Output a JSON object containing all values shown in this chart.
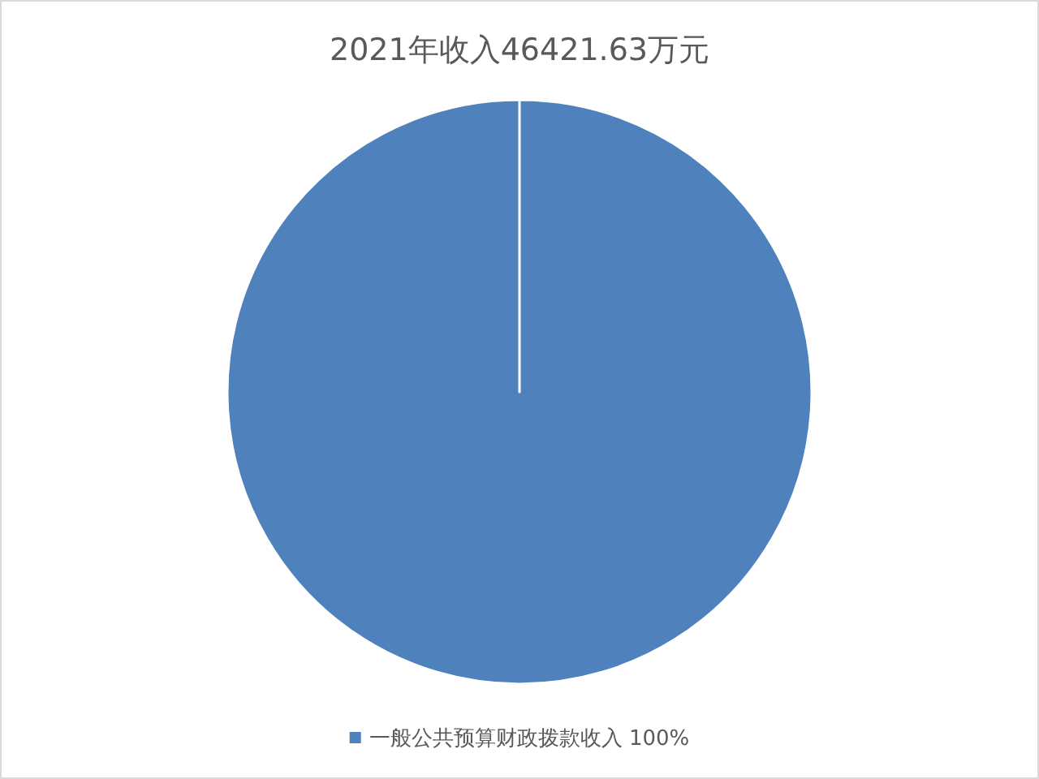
{
  "chart_data": {
    "type": "pie",
    "title": "2021年收入46421.63万元",
    "categories": [
      "一般公共预算财政拨款收入"
    ],
    "values": [
      100
    ],
    "colors": [
      "#4f81bd"
    ],
    "value_labels": [
      "100%"
    ],
    "legend": "bottom"
  }
}
